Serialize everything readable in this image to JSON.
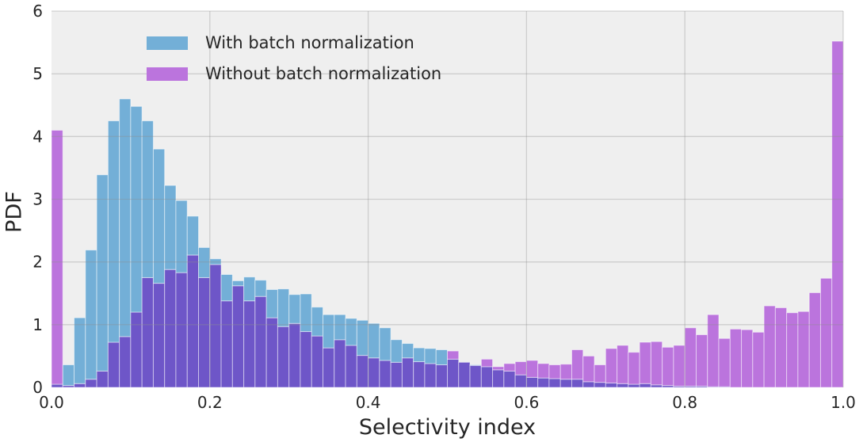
{
  "figure": {
    "kind": "matplotlib-style histogram figure"
  },
  "axes": {
    "x": {
      "label": "Selectivity index",
      "tick_labels": [
        "0.0",
        "0.2",
        "0.4",
        "0.6",
        "0.8",
        "1.0"
      ],
      "tick_values": [
        0.0,
        0.2,
        0.4,
        0.6,
        0.8,
        1.0
      ],
      "range": [
        0.0,
        1.0
      ]
    },
    "y": {
      "label": "PDF",
      "tick_labels": [
        "0",
        "1",
        "2",
        "3",
        "4",
        "5",
        "6"
      ],
      "tick_values": [
        0,
        1,
        2,
        3,
        4,
        5,
        6
      ],
      "range": [
        0,
        6
      ]
    }
  },
  "legend": {
    "position": "upper left",
    "frame": false,
    "items": [
      {
        "label": "With batch normalization",
        "color": "#73afd7"
      },
      {
        "label": "Without batch normalization",
        "color": "#bb74dd"
      }
    ]
  },
  "colors": {
    "plot_background": "#efefef",
    "grid": "#8f8f8f",
    "bar_blue": "#73afd7",
    "bar_purple": "#bb74dd",
    "bar_overlap": "#6e56c8",
    "text": "#262626",
    "bar_edge": "rgba(255,255,255,0.5)"
  },
  "chart_data": {
    "type": "bar",
    "subtype": "overlapping-histogram",
    "title": "",
    "xlabel": "Selectivity index",
    "ylabel": "PDF",
    "xlim": [
      0.0,
      1.0
    ],
    "ylim": [
      0,
      6
    ],
    "grid": true,
    "legend_position": "upper left",
    "bins": 70,
    "bin_start": 0.0,
    "bin_width": 0.0142857,
    "series": [
      {
        "name": "With batch normalization",
        "color": "#73afd7",
        "values": [
          0.05,
          0.36,
          1.11,
          2.19,
          3.39,
          4.25,
          4.6,
          4.48,
          4.25,
          3.8,
          3.22,
          2.98,
          2.73,
          2.23,
          2.05,
          1.8,
          1.7,
          1.76,
          1.71,
          1.56,
          1.57,
          1.48,
          1.49,
          1.28,
          1.16,
          1.16,
          1.1,
          1.07,
          1.02,
          0.95,
          0.76,
          0.7,
          0.63,
          0.62,
          0.6,
          0.45,
          0.4,
          0.36,
          0.33,
          0.28,
          0.26,
          0.2,
          0.16,
          0.15,
          0.14,
          0.13,
          0.13,
          0.09,
          0.08,
          0.07,
          0.06,
          0.05,
          0.06,
          0.04,
          0.03,
          0.02,
          0.02,
          0.02,
          0.01,
          0.01,
          0,
          0,
          0,
          0,
          0,
          0,
          0,
          0,
          0,
          0
        ]
      },
      {
        "name": "Without batch normalization",
        "color": "#bb74dd",
        "values": [
          4.1,
          0.03,
          0.06,
          0.13,
          0.26,
          0.72,
          0.81,
          1.2,
          1.75,
          1.66,
          1.88,
          1.83,
          2.11,
          1.75,
          1.96,
          1.38,
          1.62,
          1.38,
          1.45,
          1.11,
          0.97,
          1.02,
          0.89,
          0.82,
          0.63,
          0.76,
          0.67,
          0.51,
          0.47,
          0.43,
          0.4,
          0.47,
          0.41,
          0.38,
          0.36,
          0.58,
          0.4,
          0.35,
          0.45,
          0.33,
          0.38,
          0.41,
          0.43,
          0.38,
          0.36,
          0.37,
          0.6,
          0.5,
          0.36,
          0.62,
          0.67,
          0.56,
          0.72,
          0.73,
          0.64,
          0.67,
          0.95,
          0.84,
          1.16,
          0.78,
          0.93,
          0.92,
          0.88,
          1.3,
          1.27,
          1.19,
          1.21,
          1.51,
          1.74,
          5.52
        ]
      }
    ],
    "overlap_color": "#6e56c8"
  }
}
